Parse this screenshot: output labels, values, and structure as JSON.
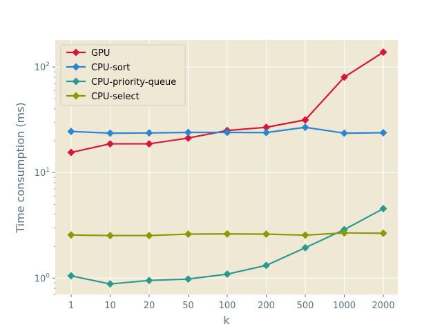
{
  "chart_data": {
    "type": "line",
    "xlabel": "k",
    "ylabel": "Time consumption (ms)",
    "yscale": "log",
    "ylim": [
      0.7,
      180
    ],
    "categories": [
      "1",
      "10",
      "20",
      "50",
      "100",
      "200",
      "500",
      "1000",
      "2000"
    ],
    "y_ticks": [
      {
        "value": 1,
        "base": "10",
        "exp": "0"
      },
      {
        "value": 10,
        "base": "10",
        "exp": "1"
      },
      {
        "value": 100,
        "base": "10",
        "exp": "2"
      }
    ],
    "grid": true,
    "legend_position": "top-left",
    "background": "#efe8d5",
    "series": [
      {
        "name": "GPU",
        "color": "#d6163c",
        "values": [
          15.5,
          18.7,
          18.7,
          21.2,
          25.0,
          26.8,
          31.5,
          80.0,
          138.0
        ]
      },
      {
        "name": "CPU-sort",
        "color": "#2a86d0",
        "values": [
          24.5,
          23.6,
          23.7,
          24.0,
          24.0,
          23.9,
          26.8,
          23.6,
          23.8
        ]
      },
      {
        "name": "CPU-priority-queue",
        "color": "#2a9a8f",
        "values": [
          1.05,
          0.88,
          0.95,
          0.98,
          1.09,
          1.32,
          1.94,
          2.88,
          4.55
        ]
      },
      {
        "name": "CPU-select",
        "color": "#8a9a00",
        "values": [
          2.56,
          2.53,
          2.53,
          2.61,
          2.62,
          2.61,
          2.55,
          2.68,
          2.66
        ]
      }
    ]
  }
}
